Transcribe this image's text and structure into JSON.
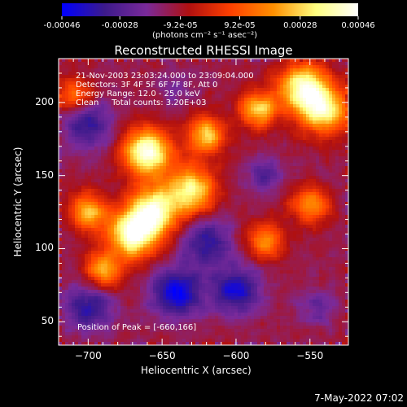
{
  "colorbar": {
    "tick_labels": [
      "-0.00046",
      "-0.00028",
      "-9.2e-05",
      "9.2e-05",
      "0.00028",
      "0.00046"
    ],
    "tick_values": [
      -0.00046,
      -0.00028,
      -9.2e-05,
      9.2e-05,
      0.00028,
      0.00046
    ],
    "range": [
      -0.00046,
      0.00046
    ],
    "units": "(photons cm⁻² s⁻¹ asec⁻²)",
    "colors": [
      "#0000ff",
      "#3c1a8c",
      "#7a2a9a",
      "#b01010",
      "#ff4000",
      "#ff9000",
      "#ffff80",
      "#ffffff"
    ]
  },
  "chart_data": {
    "type": "heatmap",
    "title": "Reconstructed RHESSI Image",
    "xlabel": "Heliocentric X (arcsec)",
    "ylabel": "Heliocentric Y (arcsec)",
    "xlim": [
      -720,
      -524
    ],
    "ylim": [
      34,
      230
    ],
    "x_ticks": [
      -700,
      -650,
      -600,
      -550
    ],
    "y_ticks": [
      50,
      100,
      150,
      200
    ],
    "x_tick_labels": [
      "−700",
      "−650",
      "−600",
      "−550"
    ],
    "y_tick_labels": [
      "50",
      "100",
      "150",
      "200"
    ],
    "annotations": [
      "21-Nov-2003 23:03:24.000 to 23:09:04.000",
      "Detectors: 3F 4F 5F 6F 7F 8F, Att 0",
      "Energy Range: 12.0 - 25.0 keV",
      "Clean     Total counts: 3.20E+03"
    ],
    "peak_text": "Position of Peak = [-660,166]",
    "peak": [
      -660,
      166
    ],
    "bright_regions": [
      {
        "x": -670,
        "y": 110,
        "level": 0.00046
      },
      {
        "x": -655,
        "y": 126,
        "level": 0.0004
      },
      {
        "x": -660,
        "y": 166,
        "level": 0.00046
      },
      {
        "x": -630,
        "y": 140,
        "level": 0.00034
      },
      {
        "x": -700,
        "y": 125,
        "level": 0.00028
      },
      {
        "x": -620,
        "y": 178,
        "level": 0.0003
      },
      {
        "x": -585,
        "y": 195,
        "level": 0.0003
      },
      {
        "x": -555,
        "y": 210,
        "level": 0.0004
      },
      {
        "x": -540,
        "y": 195,
        "level": 0.00036
      },
      {
        "x": -690,
        "y": 85,
        "level": 0.00024
      },
      {
        "x": -550,
        "y": 130,
        "level": 0.00022
      },
      {
        "x": -580,
        "y": 105,
        "level": 0.0002
      },
      {
        "x": -710,
        "y": 205,
        "level": 0.00016
      }
    ],
    "dark_regions": [
      {
        "x": -640,
        "y": 70,
        "level": -0.00046
      },
      {
        "x": -600,
        "y": 72,
        "level": -0.0004
      },
      {
        "x": -700,
        "y": 60,
        "level": -0.00036
      },
      {
        "x": -620,
        "y": 105,
        "level": -0.00036
      },
      {
        "x": -580,
        "y": 150,
        "level": -0.00028
      },
      {
        "x": -700,
        "y": 185,
        "level": -0.00036
      },
      {
        "x": -545,
        "y": 60,
        "level": -0.00024
      },
      {
        "x": -640,
        "y": 210,
        "level": -0.0002
      }
    ]
  },
  "footer": {
    "date": "7-May-2022 07:02"
  }
}
